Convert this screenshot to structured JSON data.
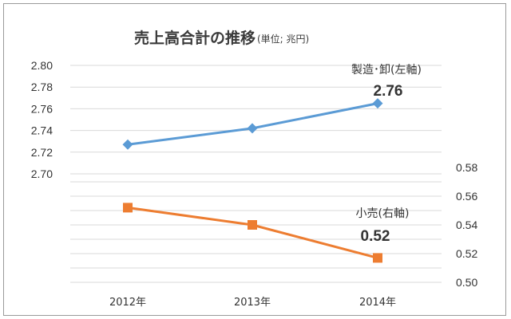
{
  "chart_data": {
    "type": "line",
    "title": "売上高合計の推移",
    "subtitle": "(単位; 兆円)",
    "categories": [
      "2012年",
      "2013年",
      "2014年"
    ],
    "left_axis": {
      "ticks": [
        "2.80",
        "2.78",
        "2.76",
        "2.74",
        "2.72",
        "2.70"
      ],
      "range": [
        2.7,
        2.8
      ]
    },
    "right_axis": {
      "ticks": [
        "0.58",
        "0.56",
        "0.54",
        "0.52",
        "0.50"
      ],
      "range": [
        0.5,
        0.58
      ]
    },
    "grid": true,
    "series": [
      {
        "name": "製造･卸(左軸)",
        "axis": "left",
        "values": [
          2.727,
          2.742,
          2.765
        ],
        "marker": "diamond",
        "color": "#5b9bd5",
        "data_label": "2.76"
      },
      {
        "name": "小売(右軸)",
        "axis": "right",
        "values": [
          0.552,
          0.54,
          0.517
        ],
        "marker": "square",
        "color": "#ed7d31",
        "data_label": "0.52"
      }
    ]
  }
}
